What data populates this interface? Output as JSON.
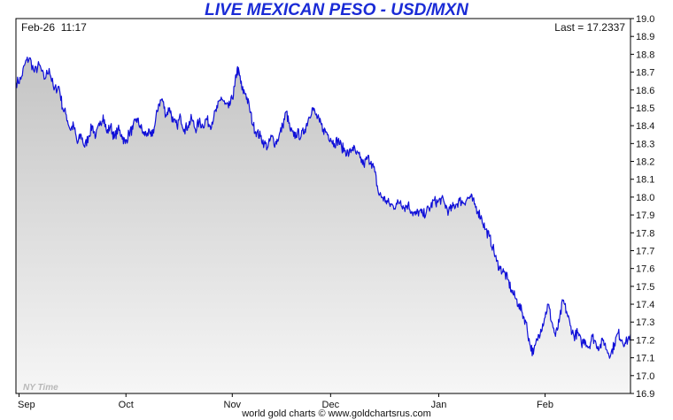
{
  "chart_data": {
    "type": "line",
    "title": "LIVE MEXICAN PESO - USD/MXN",
    "header_left": "Feb-26  11:17",
    "header_right": "Last = 17.2337",
    "watermark": "NY Time",
    "footer": "world gold charts © www.goldchartsrus.com",
    "ylim": [
      16.9,
      19.0
    ],
    "yticks": [
      "16.9",
      "17.0",
      "17.1",
      "17.2",
      "17.3",
      "17.4",
      "17.5",
      "17.6",
      "17.7",
      "17.8",
      "17.9",
      "18.0",
      "18.1",
      "18.2",
      "18.3",
      "18.4",
      "18.5",
      "18.6",
      "18.7",
      "18.8",
      "18.9",
      "19.0"
    ],
    "xlim": [
      0,
      100
    ],
    "xticks": [
      {
        "label": "Sep",
        "x": 0.5
      },
      {
        "label": "Oct",
        "x": 17.9
      },
      {
        "label": "Nov",
        "x": 35.2
      },
      {
        "label": "Dec",
        "x": 51.2
      },
      {
        "label": "Jan",
        "x": 68.8
      },
      {
        "label": "Feb",
        "x": 86.1
      }
    ],
    "series": [
      {
        "line_color": "#1010d8",
        "points": [
          [
            0,
            18.64
          ],
          [
            0.8,
            18.66
          ],
          [
            1.5,
            18.75
          ],
          [
            2.2,
            18.78
          ],
          [
            3.0,
            18.7
          ],
          [
            3.8,
            18.74
          ],
          [
            4.6,
            18.66
          ],
          [
            5.4,
            18.72
          ],
          [
            6.2,
            18.6
          ],
          [
            7.0,
            18.62
          ],
          [
            7.6,
            18.5
          ],
          [
            8.2,
            18.46
          ],
          [
            8.8,
            18.38
          ],
          [
            9.4,
            18.4
          ],
          [
            10.0,
            18.3
          ],
          [
            10.6,
            18.35
          ],
          [
            11.2,
            18.28
          ],
          [
            11.8,
            18.34
          ],
          [
            12.4,
            18.4
          ],
          [
            13.0,
            18.34
          ],
          [
            13.6,
            18.4
          ],
          [
            14.2,
            18.46
          ],
          [
            14.8,
            18.36
          ],
          [
            15.4,
            18.4
          ],
          [
            16.0,
            18.33
          ],
          [
            16.6,
            18.38
          ],
          [
            17.2,
            18.35
          ],
          [
            17.8,
            18.3
          ],
          [
            18.4,
            18.36
          ],
          [
            19.0,
            18.38
          ],
          [
            19.6,
            18.44
          ],
          [
            20.2,
            18.4
          ],
          [
            20.8,
            18.35
          ],
          [
            21.4,
            18.36
          ],
          [
            22.0,
            18.34
          ],
          [
            22.6,
            18.4
          ],
          [
            23.2,
            18.52
          ],
          [
            23.8,
            18.55
          ],
          [
            24.4,
            18.46
          ],
          [
            25.0,
            18.5
          ],
          [
            25.6,
            18.42
          ],
          [
            26.2,
            18.4
          ],
          [
            26.8,
            18.45
          ],
          [
            27.4,
            18.38
          ],
          [
            28.0,
            18.4
          ],
          [
            28.6,
            18.44
          ],
          [
            29.2,
            18.38
          ],
          [
            29.8,
            18.42
          ],
          [
            30.4,
            18.4
          ],
          [
            31.0,
            18.44
          ],
          [
            31.6,
            18.4
          ],
          [
            32.2,
            18.45
          ],
          [
            32.8,
            18.5
          ],
          [
            33.4,
            18.56
          ],
          [
            34.0,
            18.52
          ],
          [
            34.6,
            18.5
          ],
          [
            35.2,
            18.55
          ],
          [
            35.6,
            18.62
          ],
          [
            36.0,
            18.72
          ],
          [
            36.4,
            18.68
          ],
          [
            36.8,
            18.6
          ],
          [
            37.4,
            18.58
          ],
          [
            38.0,
            18.5
          ],
          [
            38.6,
            18.4
          ],
          [
            39.2,
            18.36
          ],
          [
            39.8,
            18.34
          ],
          [
            40.4,
            18.3
          ],
          [
            41.0,
            18.28
          ],
          [
            41.6,
            18.34
          ],
          [
            42.2,
            18.3
          ],
          [
            42.8,
            18.34
          ],
          [
            43.4,
            18.4
          ],
          [
            44.0,
            18.48
          ],
          [
            44.6,
            18.38
          ],
          [
            45.2,
            18.34
          ],
          [
            45.8,
            18.36
          ],
          [
            46.4,
            18.34
          ],
          [
            47.0,
            18.38
          ],
          [
            47.6,
            18.44
          ],
          [
            48.2,
            18.5
          ],
          [
            48.8,
            18.46
          ],
          [
            49.4,
            18.42
          ],
          [
            50.0,
            18.38
          ],
          [
            50.6,
            18.36
          ],
          [
            51.2,
            18.33
          ],
          [
            51.8,
            18.3
          ],
          [
            52.4,
            18.32
          ],
          [
            53.0,
            18.28
          ],
          [
            53.6,
            18.26
          ],
          [
            54.2,
            18.24
          ],
          [
            54.8,
            18.28
          ],
          [
            55.4,
            18.24
          ],
          [
            56.0,
            18.22
          ],
          [
            56.6,
            18.18
          ],
          [
            57.2,
            18.22
          ],
          [
            57.8,
            18.2
          ],
          [
            58.4,
            18.14
          ],
          [
            59.0,
            18.02
          ],
          [
            59.6,
            18.0
          ],
          [
            60.2,
            17.98
          ],
          [
            60.8,
            17.96
          ],
          [
            61.4,
            17.95
          ],
          [
            62.0,
            17.96
          ],
          [
            62.6,
            17.98
          ],
          [
            63.2,
            17.94
          ],
          [
            63.8,
            17.96
          ],
          [
            64.4,
            17.92
          ],
          [
            65.0,
            17.9
          ],
          [
            65.6,
            17.92
          ],
          [
            66.2,
            17.9
          ],
          [
            66.8,
            17.92
          ],
          [
            67.4,
            17.94
          ],
          [
            68.0,
            17.98
          ],
          [
            68.6,
            17.97
          ],
          [
            69.2,
            17.99
          ],
          [
            69.8,
            17.96
          ],
          [
            70.4,
            17.92
          ],
          [
            71.0,
            17.94
          ],
          [
            71.6,
            17.96
          ],
          [
            72.2,
            17.98
          ],
          [
            72.8,
            17.97
          ],
          [
            73.4,
            17.99
          ],
          [
            74.0,
            18.0
          ],
          [
            74.6,
            17.96
          ],
          [
            75.2,
            17.92
          ],
          [
            75.8,
            17.88
          ],
          [
            76.4,
            17.82
          ],
          [
            77.0,
            17.78
          ],
          [
            77.6,
            17.72
          ],
          [
            78.2,
            17.64
          ],
          [
            78.8,
            17.6
          ],
          [
            79.4,
            17.58
          ],
          [
            80.0,
            17.54
          ],
          [
            80.6,
            17.48
          ],
          [
            81.2,
            17.44
          ],
          [
            81.8,
            17.4
          ],
          [
            82.4,
            17.35
          ],
          [
            83.0,
            17.3
          ],
          [
            83.6,
            17.18
          ],
          [
            84.2,
            17.12
          ],
          [
            84.8,
            17.2
          ],
          [
            85.4,
            17.26
          ],
          [
            86.0,
            17.32
          ],
          [
            86.6,
            17.4
          ],
          [
            87.2,
            17.3
          ],
          [
            87.8,
            17.22
          ],
          [
            88.4,
            17.3
          ],
          [
            89.0,
            17.42
          ],
          [
            89.6,
            17.36
          ],
          [
            90.2,
            17.28
          ],
          [
            90.8,
            17.22
          ],
          [
            91.4,
            17.24
          ],
          [
            92.0,
            17.18
          ],
          [
            92.6,
            17.2
          ],
          [
            93.2,
            17.16
          ],
          [
            93.8,
            17.22
          ],
          [
            94.4,
            17.18
          ],
          [
            95.0,
            17.16
          ],
          [
            95.6,
            17.2
          ],
          [
            96.2,
            17.14
          ],
          [
            96.8,
            17.12
          ],
          [
            97.4,
            17.18
          ],
          [
            98.0,
            17.24
          ],
          [
            98.6,
            17.2
          ],
          [
            99.2,
            17.18
          ],
          [
            100,
            17.23
          ]
        ]
      }
    ]
  }
}
